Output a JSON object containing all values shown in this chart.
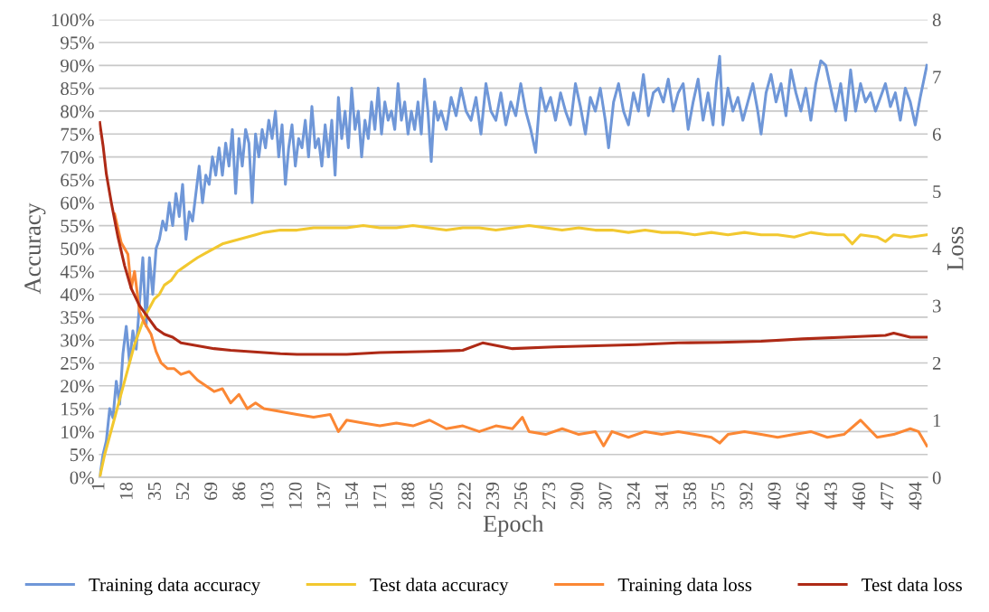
{
  "chart_data": {
    "type": "line",
    "xlabel": "Epoch",
    "ylabel": "Accuracy",
    "y2label": "Loss",
    "xlim": [
      0.5,
      500.5
    ],
    "xticks": [
      1,
      18,
      35,
      52,
      69,
      86,
      103,
      120,
      137,
      154,
      171,
      188,
      205,
      222,
      239,
      256,
      273,
      290,
      307,
      324,
      341,
      358,
      375,
      392,
      409,
      426,
      443,
      460,
      477,
      494
    ],
    "ylim": [
      0,
      100
    ],
    "yticks": [
      {
        "value": 0,
        "label": "0%"
      },
      {
        "value": 5,
        "label": "5%"
      },
      {
        "value": 10,
        "label": "10%"
      },
      {
        "value": 15,
        "label": "15%"
      },
      {
        "value": 20,
        "label": "20%"
      },
      {
        "value": 25,
        "label": "25%"
      },
      {
        "value": 30,
        "label": "30%"
      },
      {
        "value": 35,
        "label": "35%"
      },
      {
        "value": 40,
        "label": "40%"
      },
      {
        "value": 45,
        "label": "45%"
      },
      {
        "value": 50,
        "label": "50%"
      },
      {
        "value": 55,
        "label": "55%"
      },
      {
        "value": 60,
        "label": "60%"
      },
      {
        "value": 65,
        "label": "65%"
      },
      {
        "value": 70,
        "label": "70%"
      },
      {
        "value": 75,
        "label": "75%"
      },
      {
        "value": 80,
        "label": "80%"
      },
      {
        "value": 85,
        "label": "85%"
      },
      {
        "value": 90,
        "label": "90%"
      },
      {
        "value": 95,
        "label": "95%"
      },
      {
        "value": 100,
        "label": "100%"
      }
    ],
    "y2lim": [
      0,
      8
    ],
    "y2ticks": [
      0,
      1,
      2,
      3,
      4,
      5,
      6,
      7,
      8
    ],
    "grid": "y",
    "legend": "bottom",
    "marker": "none",
    "line_style": "solid",
    "series": [
      {
        "name": "Training data accuracy",
        "color": "#6f97d8",
        "x": [
          1,
          3,
          5,
          7,
          9,
          11,
          13,
          15,
          17,
          19,
          21,
          23,
          25,
          27,
          29,
          31,
          33,
          35,
          37,
          39,
          41,
          43,
          45,
          47,
          49,
          51,
          53,
          55,
          57,
          59,
          61,
          63,
          65,
          67,
          69,
          71,
          73,
          75,
          77,
          79,
          81,
          83,
          85,
          87,
          89,
          91,
          93,
          95,
          97,
          99,
          101,
          103,
          105,
          107,
          109,
          111,
          113,
          115,
          117,
          119,
          121,
          123,
          125,
          127,
          129,
          131,
          133,
          135,
          137,
          139,
          141,
          143,
          145,
          147,
          149,
          151,
          153,
          155,
          157,
          159,
          161,
          163,
          165,
          167,
          169,
          171,
          173,
          175,
          177,
          179,
          181,
          183,
          185,
          187,
          189,
          191,
          193,
          195,
          197,
          199,
          201,
          203,
          205,
          207,
          210,
          213,
          216,
          219,
          222,
          225,
          228,
          231,
          234,
          237,
          240,
          243,
          246,
          249,
          252,
          255,
          258,
          261,
          264,
          267,
          270,
          273,
          276,
          279,
          282,
          285,
          288,
          291,
          294,
          297,
          300,
          303,
          306,
          308,
          311,
          314,
          317,
          320,
          323,
          326,
          329,
          332,
          335,
          338,
          341,
          344,
          347,
          350,
          353,
          356,
          359,
          362,
          365,
          368,
          371,
          373,
          375,
          377,
          380,
          383,
          386,
          389,
          392,
          395,
          398,
          400,
          403,
          406,
          409,
          412,
          415,
          418,
          421,
          424,
          427,
          430,
          433,
          436,
          439,
          442,
          445,
          448,
          451,
          454,
          457,
          460,
          463,
          466,
          469,
          472,
          475,
          478,
          481,
          484,
          487,
          490,
          493,
          496,
          500
        ],
        "values": [
          0,
          5,
          8,
          15,
          13,
          21,
          16,
          27,
          33,
          25,
          32,
          28,
          38,
          48,
          33,
          48,
          40,
          50,
          52,
          56,
          54,
          60,
          55,
          62,
          57,
          64,
          52,
          58,
          56,
          62,
          68,
          60,
          66,
          64,
          70,
          66,
          72,
          66,
          73,
          68,
          76,
          62,
          74,
          68,
          76,
          73,
          60,
          75,
          70,
          76,
          72,
          78,
          74,
          80,
          70,
          77,
          64,
          72,
          77,
          68,
          74,
          72,
          78,
          70,
          81,
          72,
          74,
          68,
          77,
          70,
          78,
          66,
          83,
          74,
          80,
          72,
          85,
          76,
          80,
          70,
          78,
          74,
          82,
          76,
          85,
          75,
          82,
          78,
          80,
          76,
          86,
          78,
          82,
          75,
          80,
          76,
          82,
          75,
          87,
          80,
          69,
          82,
          78,
          80,
          76,
          83,
          79,
          85,
          80,
          78,
          83,
          75,
          86,
          80,
          78,
          84,
          77,
          82,
          79,
          86,
          80,
          76,
          71,
          85,
          80,
          83,
          78,
          84,
          80,
          77,
          86,
          81,
          75,
          83,
          80,
          85,
          78,
          72,
          82,
          86,
          80,
          77,
          84,
          80,
          88,
          79,
          84,
          85,
          82,
          87,
          80,
          84,
          86,
          76,
          82,
          87,
          78,
          84,
          77,
          86,
          92,
          77,
          85,
          80,
          83,
          78,
          82,
          86,
          80,
          75,
          84,
          88,
          82,
          86,
          79,
          89,
          84,
          80,
          85,
          78,
          86,
          91,
          90,
          85,
          80,
          86,
          78,
          89,
          80,
          86,
          82,
          84,
          80,
          83,
          86,
          81,
          84,
          78,
          85,
          82,
          77,
          83,
          90
        ]
      },
      {
        "name": "Test data accuracy",
        "color": "#f2c82f",
        "x": [
          1,
          4,
          7,
          10,
          13,
          16,
          19,
          22,
          25,
          28,
          31,
          34,
          37,
          40,
          44,
          48,
          52,
          56,
          60,
          65,
          70,
          75,
          80,
          85,
          90,
          95,
          100,
          110,
          120,
          130,
          140,
          150,
          160,
          170,
          180,
          190,
          200,
          210,
          220,
          230,
          240,
          250,
          260,
          270,
          280,
          290,
          300,
          310,
          320,
          330,
          340,
          350,
          360,
          370,
          380,
          390,
          400,
          410,
          420,
          430,
          440,
          450,
          455,
          460,
          470,
          475,
          480,
          490,
          500
        ],
        "values": [
          0,
          5,
          9,
          13,
          17,
          21,
          25,
          29,
          32,
          35,
          37,
          39,
          40,
          42,
          43,
          45,
          46,
          47,
          48,
          49,
          50,
          51,
          51.5,
          52,
          52.5,
          53,
          53.5,
          54,
          54,
          54.5,
          54.5,
          54.5,
          55,
          54.5,
          54.5,
          55,
          54.5,
          54,
          54.5,
          54.5,
          54,
          54.5,
          55,
          54.5,
          54,
          54.5,
          54,
          54,
          53.5,
          54,
          53.5,
          53.5,
          53,
          53.5,
          53,
          53.5,
          53,
          53,
          52.5,
          53.5,
          53,
          53,
          51,
          53,
          52.5,
          51.5,
          53,
          52.5,
          53
        ]
      },
      {
        "name": "Training data loss",
        "color": "#fb8734",
        "axis": "y2",
        "x": [
          10,
          14,
          18,
          20,
          22,
          25,
          28,
          32,
          35,
          38,
          42,
          46,
          50,
          55,
          60,
          65,
          70,
          75,
          80,
          85,
          90,
          95,
          100,
          110,
          120,
          130,
          140,
          145,
          150,
          160,
          170,
          180,
          190,
          200,
          210,
          220,
          230,
          240,
          250,
          256,
          260,
          270,
          280,
          290,
          300,
          305,
          310,
          320,
          330,
          340,
          350,
          360,
          370,
          375,
          380,
          390,
          400,
          410,
          420,
          430,
          440,
          450,
          460,
          470,
          480,
          490,
          495,
          500
        ],
        "values": [
          4.6,
          4.1,
          3.9,
          3.3,
          3.6,
          2.9,
          2.7,
          2.5,
          2.2,
          2.0,
          1.9,
          1.9,
          1.8,
          1.85,
          1.7,
          1.6,
          1.5,
          1.55,
          1.3,
          1.45,
          1.2,
          1.3,
          1.2,
          1.15,
          1.1,
          1.05,
          1.1,
          0.8,
          1.0,
          0.95,
          0.9,
          0.95,
          0.9,
          1.0,
          0.85,
          0.9,
          0.8,
          0.9,
          0.85,
          1.05,
          0.8,
          0.75,
          0.85,
          0.75,
          0.8,
          0.55,
          0.8,
          0.7,
          0.8,
          0.75,
          0.8,
          0.75,
          0.7,
          0.6,
          0.75,
          0.8,
          0.75,
          0.7,
          0.75,
          0.8,
          0.7,
          0.75,
          1.0,
          0.7,
          0.75,
          0.85,
          0.8,
          0.55
        ]
      },
      {
        "name": "Test data loss",
        "color": "#ae2a16",
        "axis": "y2",
        "x": [
          1,
          3,
          5,
          8,
          12,
          16,
          20,
          25,
          30,
          35,
          40,
          45,
          50,
          60,
          70,
          80,
          90,
          100,
          110,
          120,
          135,
          150,
          170,
          200,
          220,
          232,
          250,
          275,
          300,
          325,
          350,
          375,
          400,
          425,
          450,
          475,
          480,
          490,
          500
        ],
        "values": [
          6.2,
          5.8,
          5.3,
          4.8,
          4.2,
          3.7,
          3.3,
          3.0,
          2.8,
          2.6,
          2.5,
          2.45,
          2.35,
          2.3,
          2.25,
          2.22,
          2.2,
          2.18,
          2.16,
          2.15,
          2.15,
          2.15,
          2.18,
          2.2,
          2.22,
          2.35,
          2.25,
          2.28,
          2.3,
          2.32,
          2.35,
          2.36,
          2.38,
          2.42,
          2.45,
          2.48,
          2.52,
          2.45,
          2.45
        ]
      }
    ]
  }
}
